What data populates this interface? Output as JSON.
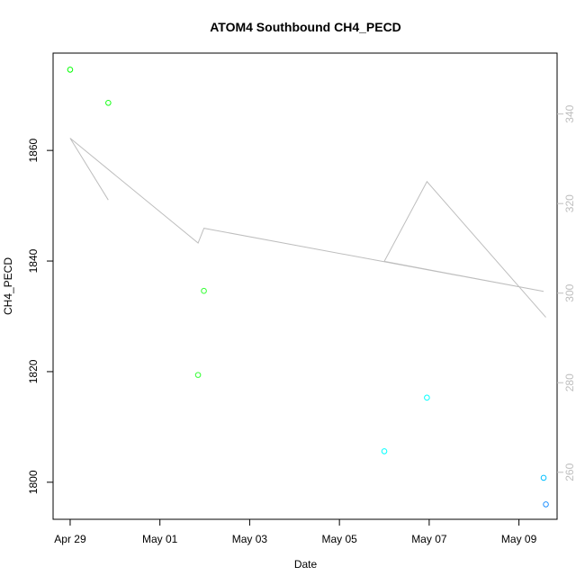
{
  "chart_data": {
    "type": "scatter",
    "title": "ATOM4 Southbound CH4_PECD",
    "xlabel": "Date",
    "ylabel": "CH4_PECD",
    "x_ticks": [
      "Apr 29",
      "May 01",
      "May 03",
      "May 05",
      "May 07",
      "May 09"
    ],
    "x_tick_positions_days": [
      0,
      2,
      4,
      6,
      8,
      10
    ],
    "xlim_days": [
      -0.38,
      10.85
    ],
    "ylim": [
      1793.3,
      1877.6
    ],
    "y_ticks": [
      1800,
      1820,
      1840,
      1860
    ],
    "y2_ticks": [
      260,
      280,
      300,
      320,
      340
    ],
    "y2lim": [
      249.5,
      353.6
    ],
    "y2_color": "#bebebe",
    "grid": false,
    "series": [
      {
        "type": "scatter",
        "x_days": [
          0.0,
          0.85,
          2.85,
          2.98,
          7.0,
          7.95,
          10.55,
          10.6
        ],
        "x": [
          "Apr 29",
          "Apr 29",
          "May 01",
          "May 01",
          "May 05",
          "May 06",
          "May 09",
          "May 09"
        ],
        "values": [
          1874.6,
          1868.6,
          1819.4,
          1834.6,
          1805.6,
          1815.3,
          1800.8,
          1796.0
        ],
        "colors": [
          "#00ff00",
          "#19ff19",
          "#33ff33",
          "#33ff33",
          "#00ffff",
          "#00ffff",
          "#00bfff",
          "#1e90ff"
        ],
        "marker": "open-circle"
      },
      {
        "type": "line",
        "axis": "right",
        "color": "#bebebe",
        "x_days": [
          0.0,
          0.85,
          2.85,
          2.98,
          7.0,
          7.95,
          10.55,
          10.6
        ],
        "values": [
          334.6,
          320.8,
          311.2,
          314.5,
          307.1,
          324.9,
          300.4,
          294.6
        ],
        "order": [
          1,
          0,
          2,
          3,
          6,
          4,
          5,
          7
        ]
      }
    ]
  }
}
